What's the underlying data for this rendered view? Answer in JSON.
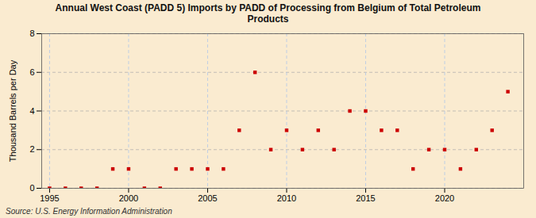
{
  "chart_data": {
    "type": "scatter",
    "title": "Annual West Coast (PADD 5) Imports by PADD of Processing from Belgium of Total Petroleum\nProducts",
    "ylabel": "Thousand Barrels per Day",
    "source": "Source: U.S. Energy Information Administration",
    "x": [
      1995,
      1996,
      1997,
      1998,
      1999,
      2000,
      2001,
      2002,
      2003,
      2004,
      2005,
      2006,
      2007,
      2008,
      2009,
      2010,
      2011,
      2012,
      2013,
      2014,
      2015,
      2016,
      2017,
      2018,
      2019,
      2020,
      2021,
      2022,
      2023,
      2024
    ],
    "values": [
      0,
      0,
      0,
      0,
      1,
      1,
      0,
      0,
      1,
      1,
      1,
      1,
      3,
      6,
      2,
      3,
      2,
      3,
      2,
      4,
      4,
      3,
      3,
      1,
      2,
      2,
      1,
      2,
      3,
      5
    ],
    "color": "#cc0000",
    "marker": "square",
    "xlim": [
      1994.5,
      2025
    ],
    "xticks": [
      1995,
      2000,
      2005,
      2010,
      2015,
      2020
    ],
    "ylim": [
      0,
      8
    ],
    "yticks": [
      0,
      2,
      4,
      6,
      8
    ],
    "grid": true
  }
}
